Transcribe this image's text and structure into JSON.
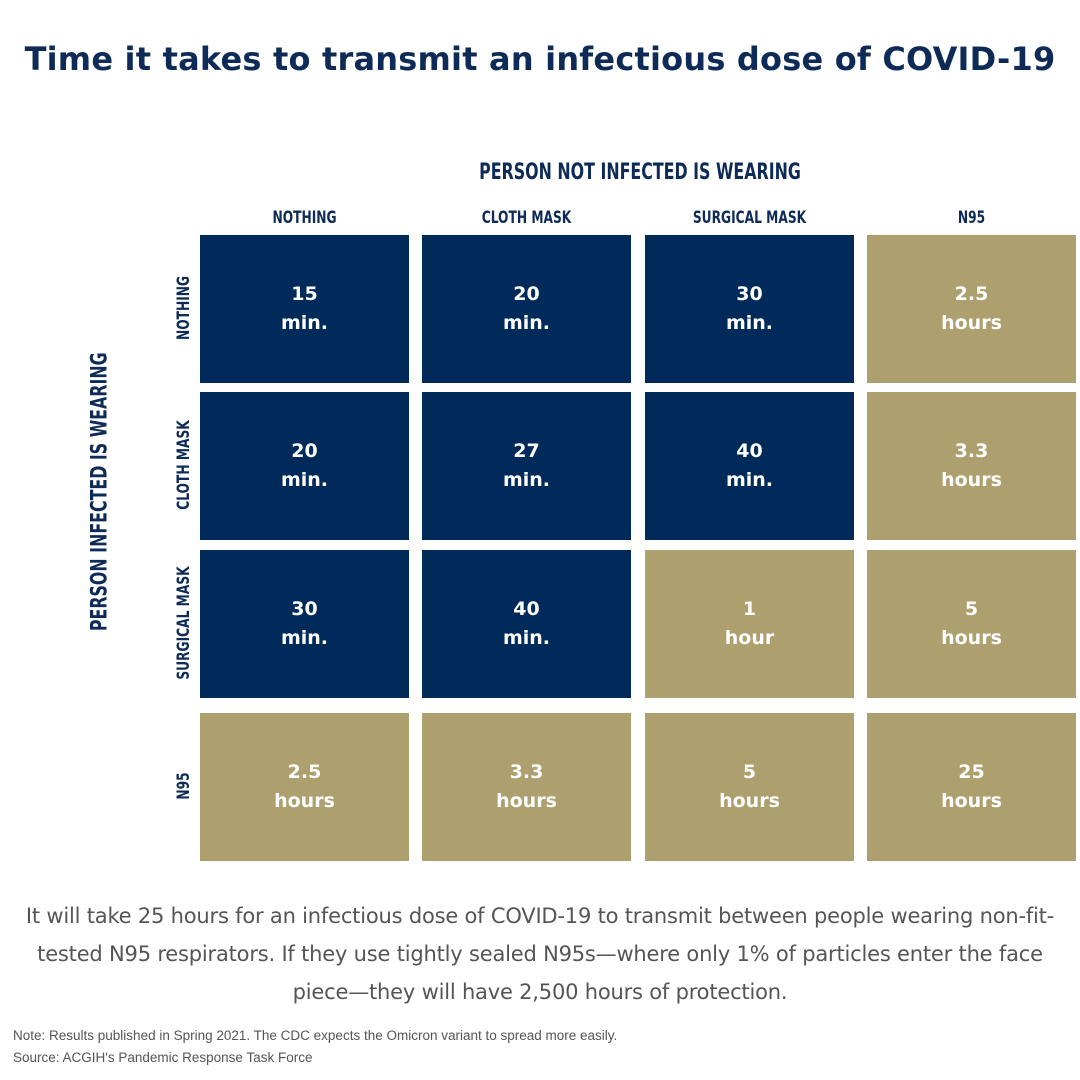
{
  "title": "Time it takes to transmit an infectious dose of COVID-19",
  "chart_data": {
    "type": "table",
    "column_axis_label": "PERSON NOT INFECTED IS WEARING",
    "row_axis_label": "PERSON INFECTED IS WEARING",
    "columns": [
      "NOTHING",
      "CLOTH MASK",
      "SURGICAL MASK",
      "N95"
    ],
    "rows": [
      "NOTHING",
      "CLOTH MASK",
      "SURGICAL MASK",
      "N95"
    ],
    "cells": [
      [
        {
          "value": "15",
          "unit": "min."
        },
        {
          "value": "20",
          "unit": "min."
        },
        {
          "value": "30",
          "unit": "min."
        },
        {
          "value": "2.5",
          "unit": "hours"
        }
      ],
      [
        {
          "value": "20",
          "unit": "min."
        },
        {
          "value": "27",
          "unit": "min."
        },
        {
          "value": "40",
          "unit": "min."
        },
        {
          "value": "3.3",
          "unit": "hours"
        }
      ],
      [
        {
          "value": "30",
          "unit": "min."
        },
        {
          "value": "40",
          "unit": "min."
        },
        {
          "value": "1",
          "unit": "hour"
        },
        {
          "value": "5",
          "unit": "hours"
        }
      ],
      [
        {
          "value": "2.5",
          "unit": "hours"
        },
        {
          "value": "3.3",
          "unit": "hours"
        },
        {
          "value": "5",
          "unit": "hours"
        },
        {
          "value": "25",
          "unit": "hours"
        }
      ]
    ],
    "colors": {
      "minutes": "#002a5a",
      "hours": "#ad9f6e"
    }
  },
  "description": "It will take 25 hours for an infectious dose of COVID-19 to transmit between people wearing non-fit-tested N95 respirators. If they use tightly sealed N95s—where only 1% of particles enter the face piece—they will have 2,500 hours of protection.",
  "note": "Note: Results published in Spring 2021. The CDC expects the Omicron variant to spread more easily.",
  "source": "Source: ACGIH's Pandemic Response Task Force"
}
